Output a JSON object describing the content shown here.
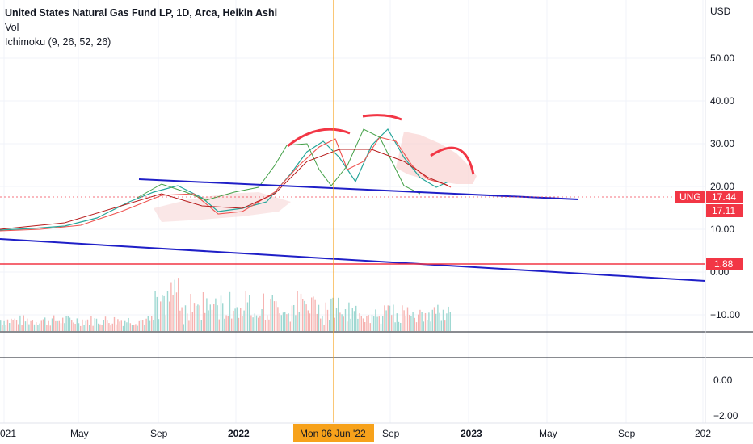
{
  "legend": {
    "title": "United States Natural Gas Fund LP, 1D, Arca, Heikin Ashi",
    "indicator1": "Vol",
    "indicator2": "Ichimoku (9, 26, 52, 26)"
  },
  "price_axis": {
    "currency": "USD",
    "ticks": [
      "50.00",
      "40.00",
      "30.00",
      "20.00",
      "10.00",
      "0.00",
      "−10.00"
    ],
    "lower_ticks": [
      "0.00",
      "−2.00"
    ]
  },
  "time_axis": {
    "labels": [
      "021",
      "May",
      "Sep",
      "2022",
      "Sep",
      "2023",
      "May",
      "Sep",
      "202"
    ],
    "bold_labels": [
      "2022",
      "2023"
    ],
    "crosshair_label": "Mon 06 Jun '22"
  },
  "badges": {
    "ticker": "UNG",
    "last_price": "17.44",
    "second_price": "17.11",
    "line_price": "1.88"
  },
  "colors": {
    "up_candle": "#26a69a",
    "down_candle": "#ef5350",
    "trendline": "#1f1fc7",
    "horizontal_line": "#f23645",
    "crosshair": "#f7a21b",
    "arc": "#f23645",
    "cloud": "#f8c8c8"
  },
  "icons": [
    "crosshair-icon"
  ]
}
